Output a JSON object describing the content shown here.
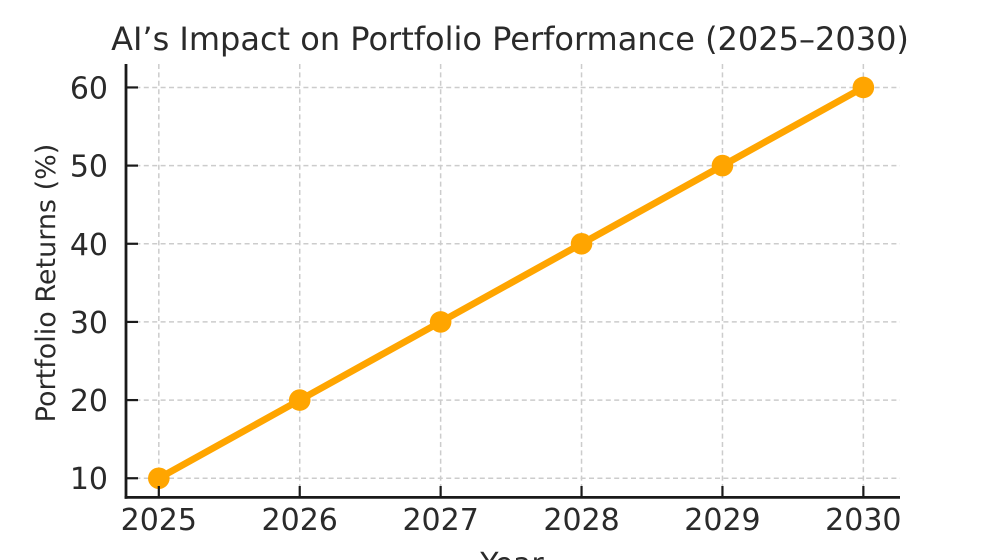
{
  "figure": {
    "background": "#ffffff"
  },
  "chart_data": {
    "type": "line",
    "title": "AI’s Impact on Portfolio Performance (2025–2030)",
    "xlabel": "Year",
    "ylabel": "Portfolio Returns (%)",
    "x": [
      2025,
      2026,
      2027,
      2028,
      2029,
      2030
    ],
    "values": [
      10,
      20,
      30,
      40,
      50,
      60
    ],
    "xtick_labels": [
      "2025",
      "2026",
      "2027",
      "2028",
      "2029",
      "2030"
    ],
    "ytick_values": [
      10,
      20,
      30,
      40,
      50,
      60
    ],
    "ytick_labels": [
      "10",
      "20",
      "30",
      "40",
      "50",
      "60"
    ],
    "xlim": [
      2024.76,
      2030.26
    ],
    "ylim": [
      7.6,
      63.0
    ],
    "grid": true,
    "grid_style": "dashed",
    "legend": "none",
    "line_color": "#FFA500",
    "marker": "circle",
    "grid_color": "#cccccc",
    "axis_color": "#1a1a1a",
    "text_color": "#2a2a2a"
  }
}
